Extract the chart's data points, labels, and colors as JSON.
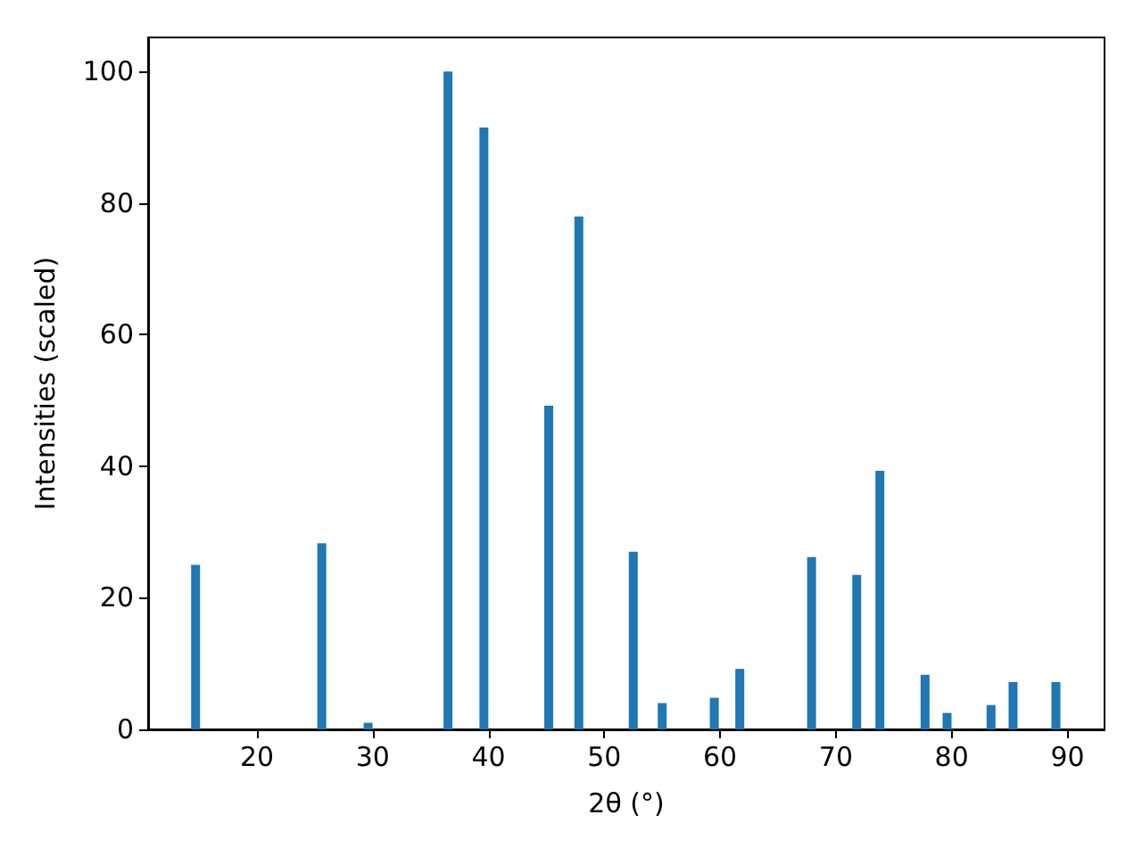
{
  "chart_data": {
    "type": "bar",
    "xlabel": "2θ (°)",
    "ylabel": "Intensities (scaled)",
    "x": [
      14.7,
      25.6,
      29.6,
      36.5,
      39.6,
      45.2,
      47.8,
      52.5,
      55.0,
      59.5,
      61.7,
      67.9,
      71.8,
      73.8,
      77.7,
      79.6,
      83.4,
      85.3,
      89.0
    ],
    "values": [
      25,
      28.3,
      1,
      100,
      91.5,
      49.2,
      78,
      27,
      4,
      4.8,
      9.2,
      26.2,
      23.5,
      39.3,
      8.3,
      2.5,
      3.7,
      7.2,
      7.2
    ],
    "color": "#1f77b4",
    "xlim": [
      10.6,
      93.2
    ],
    "xticks": [
      20,
      30,
      40,
      50,
      60,
      70,
      80,
      90
    ],
    "ylim": [
      0,
      105.2
    ],
    "yticks": [
      0,
      20,
      40,
      60,
      80,
      100
    ]
  }
}
